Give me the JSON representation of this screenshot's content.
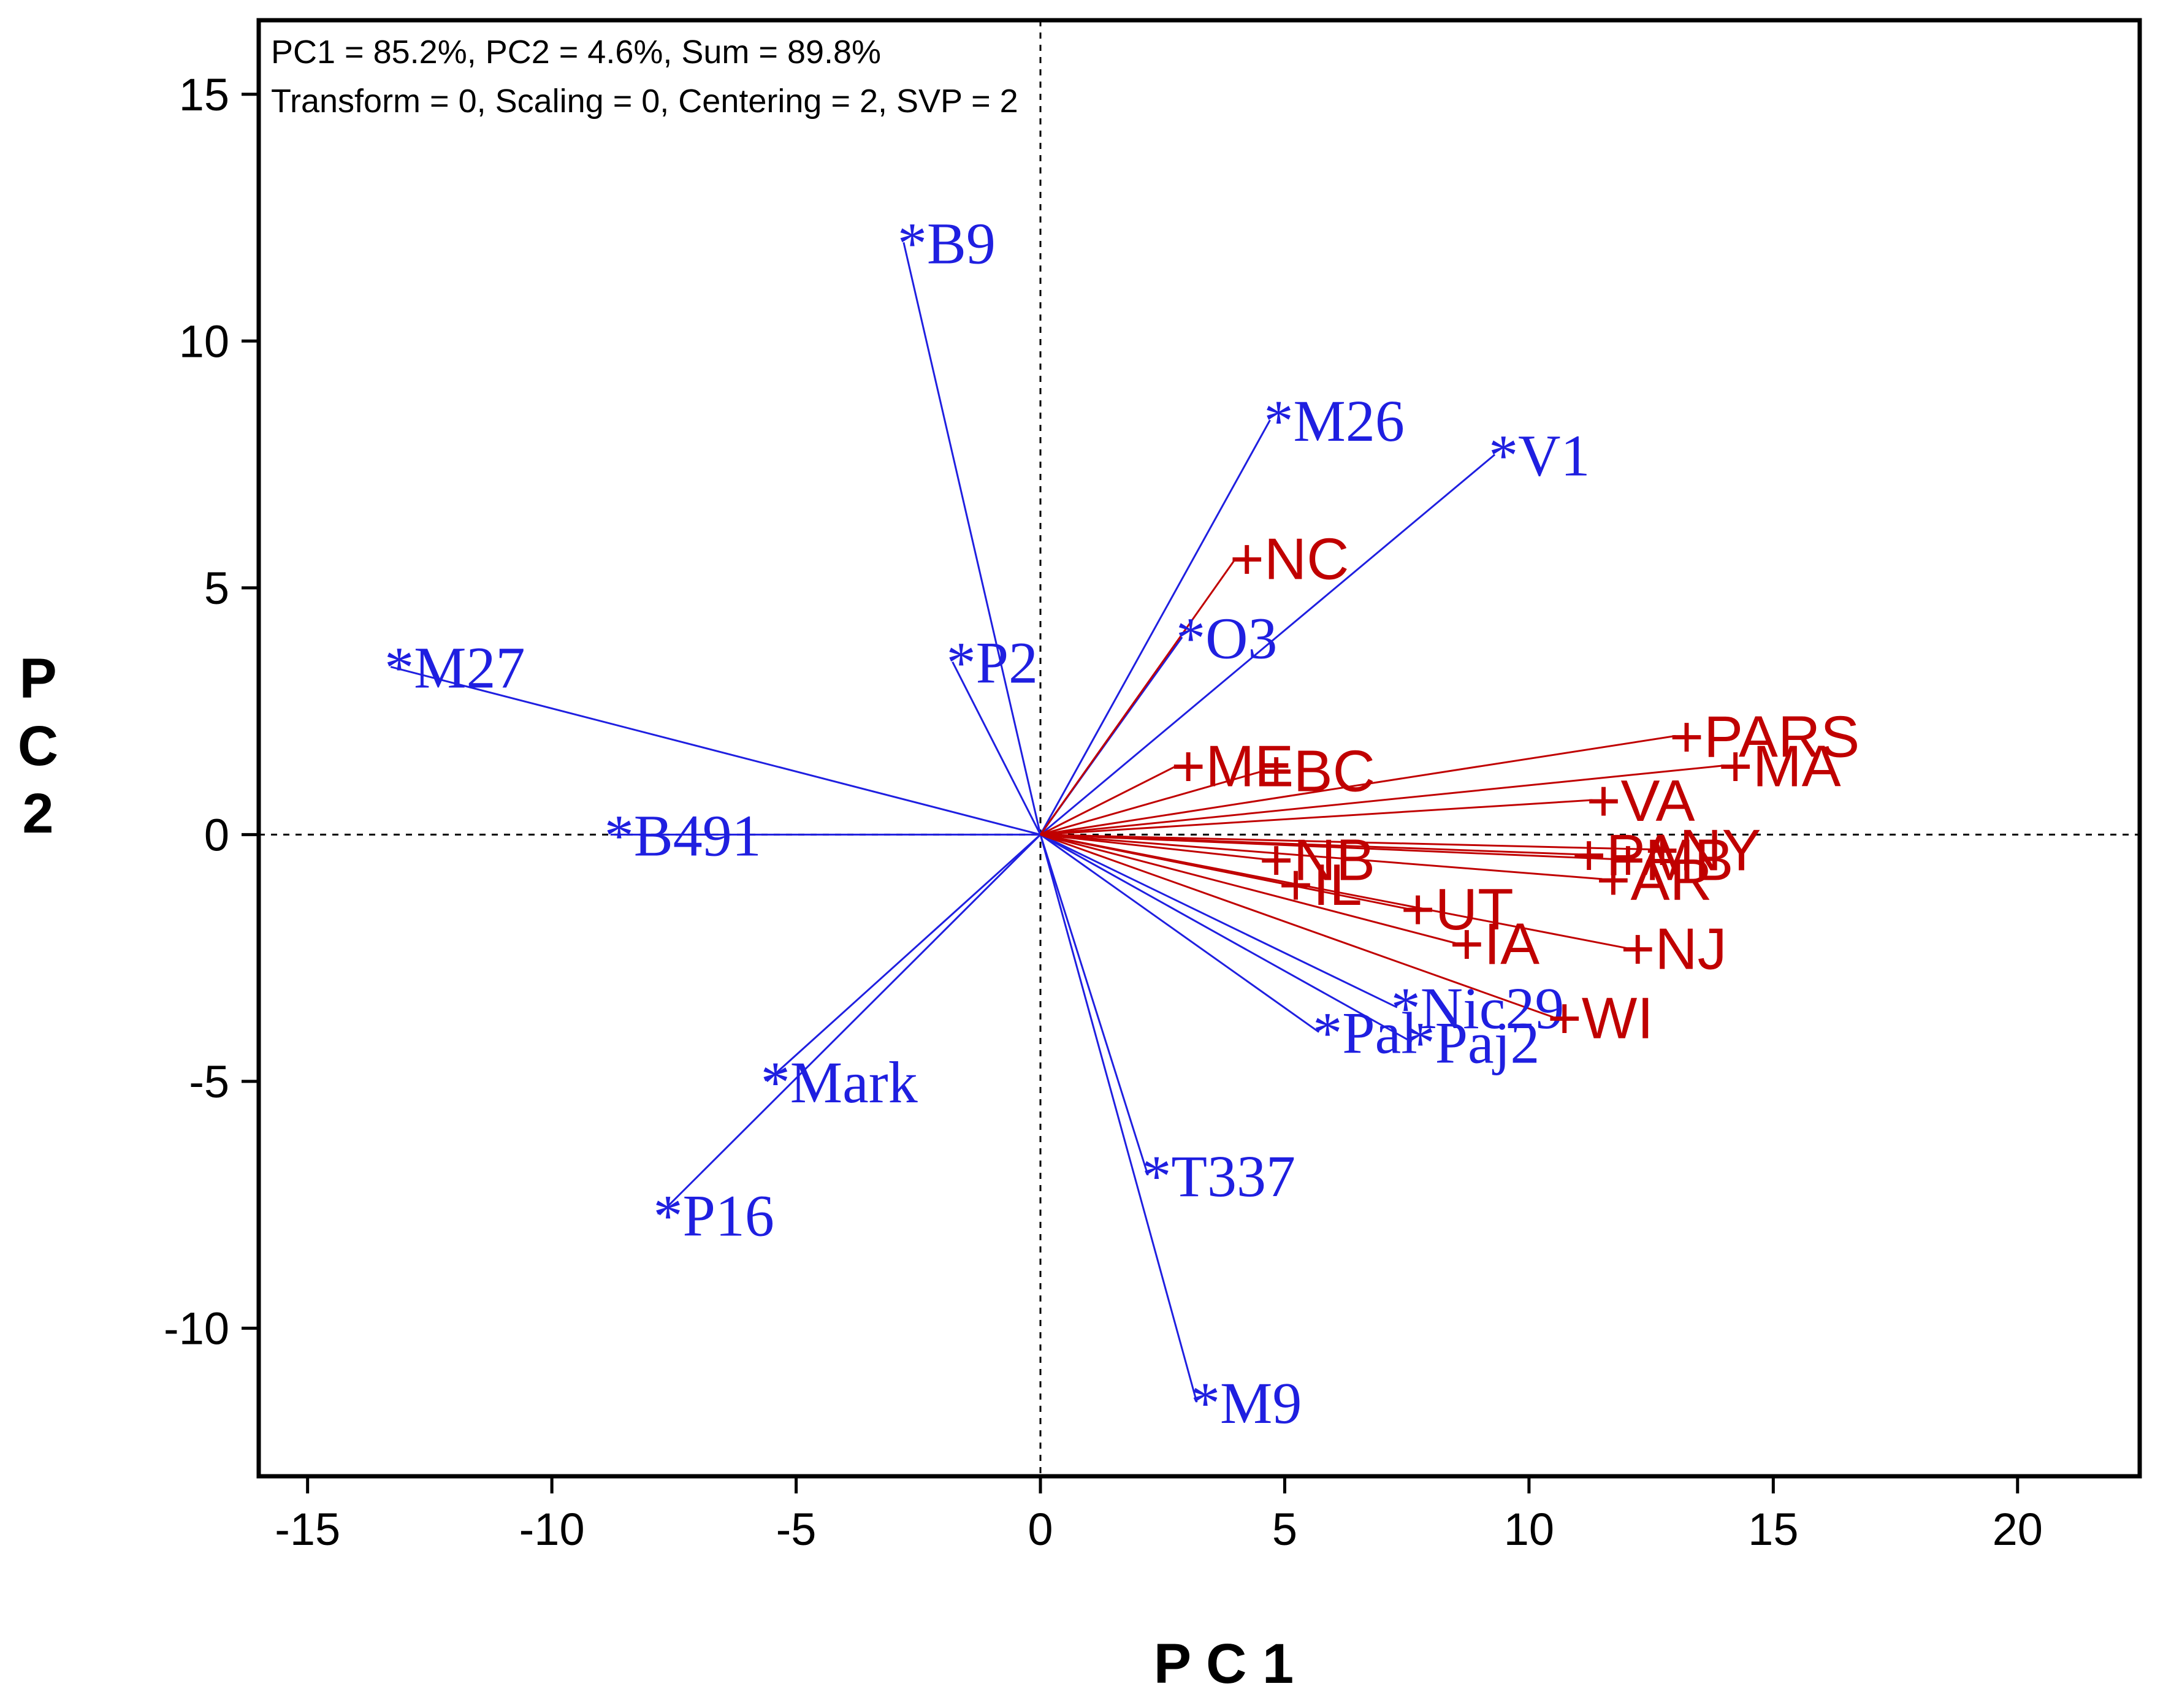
{
  "chart_data": {
    "type": "scatter",
    "title": "",
    "annotations": [
      "PC1 = 85.2%, PC2 = 4.6%, Sum = 89.8%",
      "Transform = 0, Scaling = 0, Centering = 2, SVP = 2"
    ],
    "xlabel": "P C 1",
    "ylabel_lines": [
      "P",
      "C",
      "2"
    ],
    "xlim": [
      -16,
      22.5
    ],
    "ylim": [
      -13,
      16.5
    ],
    "xticks": [
      -15,
      -10,
      -5,
      0,
      5,
      10,
      15,
      20
    ],
    "yticks": [
      15,
      10,
      5,
      0,
      -5,
      -10
    ],
    "reference_lines": {
      "x": 0,
      "y": 0,
      "style": "dashed"
    },
    "colors": {
      "genotypes": "#1f1fe0",
      "environments": "#c00000",
      "axes": "#000000"
    },
    "series": [
      {
        "name": "genotypes",
        "marker": "*",
        "points": [
          {
            "label": "B9",
            "x": -2.8,
            "y": 12.0
          },
          {
            "label": "M26",
            "x": 4.7,
            "y": 8.4
          },
          {
            "label": "V1",
            "x": 9.3,
            "y": 7.7
          },
          {
            "label": "M27",
            "x": -13.3,
            "y": 3.4
          },
          {
            "label": "P2",
            "x": -1.8,
            "y": 3.5
          },
          {
            "label": "O3",
            "x": 2.9,
            "y": 4.0
          },
          {
            "label": "B491",
            "x": -8.8,
            "y": 0.0
          },
          {
            "label": "Mark",
            "x": -5.6,
            "y": -5.0
          },
          {
            "label": "P16",
            "x": -7.8,
            "y": -7.7
          },
          {
            "label": "T337",
            "x": 2.2,
            "y": -6.9
          },
          {
            "label": "M9",
            "x": 3.2,
            "y": -11.5
          },
          {
            "label": "Pal",
            "x": 5.7,
            "y": -4.0
          },
          {
            "label": "Nic29",
            "x": 7.3,
            "y": -3.5
          },
          {
            "label": "Paj2",
            "x": 7.6,
            "y": -4.2
          }
        ]
      },
      {
        "name": "environments",
        "marker": "+",
        "points": [
          {
            "label": "PARS",
            "x": 13.0,
            "y": 2.0
          },
          {
            "label": "MA",
            "x": 14.0,
            "y": 1.4
          },
          {
            "label": "VA",
            "x": 11.3,
            "y": 0.7
          },
          {
            "label": "NY",
            "x": 12.5,
            "y": -0.3
          },
          {
            "label": "PA",
            "x": 11.0,
            "y": -0.4
          },
          {
            "label": "MB",
            "x": 11.8,
            "y": -0.5
          },
          {
            "label": "AR",
            "x": 11.5,
            "y": -0.9
          },
          {
            "label": "NJ",
            "x": 12.0,
            "y": -2.3
          },
          {
            "label": "NC",
            "x": 4.0,
            "y": 5.6
          },
          {
            "label": "ME",
            "x": 2.8,
            "y": 1.4
          },
          {
            "label": "BC",
            "x": 4.6,
            "y": 1.3
          },
          {
            "label": "NB",
            "x": 4.6,
            "y": -0.5
          },
          {
            "label": "IL",
            "x": 5.0,
            "y": -1.0
          },
          {
            "label": "UT",
            "x": 7.5,
            "y": -1.5
          },
          {
            "label": "IA",
            "x": 8.5,
            "y": -2.2
          },
          {
            "label": "WI",
            "x": 10.5,
            "y": -3.7
          }
        ]
      }
    ]
  }
}
